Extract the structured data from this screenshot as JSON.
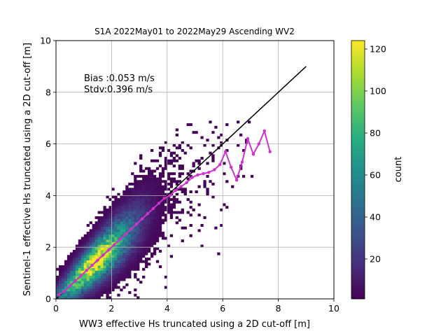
{
  "chart_data": {
    "type": "heatmap",
    "title": "S1A 2022May01 to 2022May29 Ascending WV2",
    "xlabel": "WW3 effective Hs truncated using a 2D cut-off [m]",
    "ylabel": "Sentinel-1 effective Hs truncated using a 2D cut-off [m]",
    "xlim": [
      0,
      10
    ],
    "ylim": [
      0,
      10
    ],
    "xticks": [
      "0",
      "2",
      "4",
      "6",
      "8",
      "10"
    ],
    "yticks": [
      "0",
      "2",
      "4",
      "6",
      "8",
      "10"
    ],
    "grid": true,
    "annotations": [
      "Bias :0.053 m/s",
      "Stdv:0.396 m/s"
    ],
    "colorbar": {
      "label": "count",
      "range": [
        1,
        124
      ],
      "ticks": [
        "20",
        "40",
        "60",
        "80",
        "100",
        "120"
      ],
      "colormap": "viridis"
    },
    "reference_line": {
      "x": [
        0,
        9
      ],
      "y": [
        0,
        9
      ],
      "color": "#000000"
    },
    "binned_mean": {
      "color": "#cc33cc",
      "x": [
        0.1,
        0.3,
        0.5,
        0.7,
        0.9,
        1.1,
        1.3,
        1.5,
        1.7,
        1.9,
        2.1,
        2.3,
        2.5,
        2.7,
        2.9,
        3.1,
        3.3,
        3.5,
        3.7,
        3.9,
        4.1,
        4.3,
        4.5,
        4.7,
        4.9,
        5.1,
        5.3,
        5.5,
        5.7,
        5.9,
        6.1,
        6.3,
        6.5,
        6.7,
        6.9,
        7.1,
        7.3,
        7.5,
        7.7
      ],
      "y": [
        0.15,
        0.3,
        0.5,
        0.7,
        0.9,
        1.1,
        1.3,
        1.5,
        1.7,
        1.9,
        2.1,
        2.3,
        2.5,
        2.7,
        2.9,
        3.1,
        3.3,
        3.5,
        3.7,
        3.9,
        4.0,
        4.2,
        4.35,
        4.5,
        4.7,
        4.8,
        4.85,
        4.9,
        5.0,
        5.2,
        5.7,
        5.1,
        4.6,
        5.3,
        6.2,
        5.6,
        6.0,
        6.5,
        5.7
      ]
    }
  }
}
